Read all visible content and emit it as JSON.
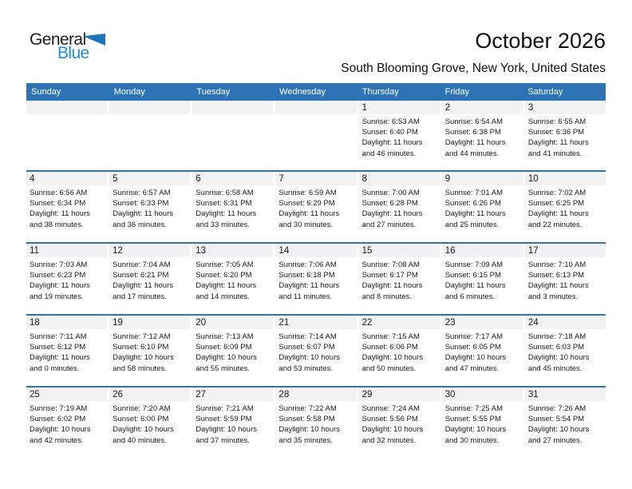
{
  "logo": {
    "part1": "General",
    "part2": "Blue"
  },
  "header": {
    "title": "October 2026",
    "subtitle": "South Blooming Grove, New York, United States"
  },
  "weekdays": [
    "Sunday",
    "Monday",
    "Tuesday",
    "Wednesday",
    "Thursday",
    "Friday",
    "Saturday"
  ],
  "colors": {
    "header_blue": "#2e74b5",
    "band_gray": "#f2f2f2",
    "logo_blue": "#1e8fd8",
    "triangle_blue": "#1d76bc"
  },
  "weeks": [
    [
      null,
      null,
      null,
      null,
      {
        "day": "1",
        "sunrise": "Sunrise: 6:53 AM",
        "sunset": "Sunset: 6:40 PM",
        "daylight_line1": "Daylight: 11 hours",
        "daylight_line2": "and 46 minutes."
      },
      {
        "day": "2",
        "sunrise": "Sunrise: 6:54 AM",
        "sunset": "Sunset: 6:38 PM",
        "daylight_line1": "Daylight: 11 hours",
        "daylight_line2": "and 44 minutes."
      },
      {
        "day": "3",
        "sunrise": "Sunrise: 6:55 AM",
        "sunset": "Sunset: 6:36 PM",
        "daylight_line1": "Daylight: 11 hours",
        "daylight_line2": "and 41 minutes."
      }
    ],
    [
      {
        "day": "4",
        "sunrise": "Sunrise: 6:56 AM",
        "sunset": "Sunset: 6:34 PM",
        "daylight_line1": "Daylight: 11 hours",
        "daylight_line2": "and 38 minutes."
      },
      {
        "day": "5",
        "sunrise": "Sunrise: 6:57 AM",
        "sunset": "Sunset: 6:33 PM",
        "daylight_line1": "Daylight: 11 hours",
        "daylight_line2": "and 36 minutes."
      },
      {
        "day": "6",
        "sunrise": "Sunrise: 6:58 AM",
        "sunset": "Sunset: 6:31 PM",
        "daylight_line1": "Daylight: 11 hours",
        "daylight_line2": "and 33 minutes."
      },
      {
        "day": "7",
        "sunrise": "Sunrise: 6:59 AM",
        "sunset": "Sunset: 6:29 PM",
        "daylight_line1": "Daylight: 11 hours",
        "daylight_line2": "and 30 minutes."
      },
      {
        "day": "8",
        "sunrise": "Sunrise: 7:00 AM",
        "sunset": "Sunset: 6:28 PM",
        "daylight_line1": "Daylight: 11 hours",
        "daylight_line2": "and 27 minutes."
      },
      {
        "day": "9",
        "sunrise": "Sunrise: 7:01 AM",
        "sunset": "Sunset: 6:26 PM",
        "daylight_line1": "Daylight: 11 hours",
        "daylight_line2": "and 25 minutes."
      },
      {
        "day": "10",
        "sunrise": "Sunrise: 7:02 AM",
        "sunset": "Sunset: 6:25 PM",
        "daylight_line1": "Daylight: 11 hours",
        "daylight_line2": "and 22 minutes."
      }
    ],
    [
      {
        "day": "11",
        "sunrise": "Sunrise: 7:03 AM",
        "sunset": "Sunset: 6:23 PM",
        "daylight_line1": "Daylight: 11 hours",
        "daylight_line2": "and 19 minutes."
      },
      {
        "day": "12",
        "sunrise": "Sunrise: 7:04 AM",
        "sunset": "Sunset: 6:21 PM",
        "daylight_line1": "Daylight: 11 hours",
        "daylight_line2": "and 17 minutes."
      },
      {
        "day": "13",
        "sunrise": "Sunrise: 7:05 AM",
        "sunset": "Sunset: 6:20 PM",
        "daylight_line1": "Daylight: 11 hours",
        "daylight_line2": "and 14 minutes."
      },
      {
        "day": "14",
        "sunrise": "Sunrise: 7:06 AM",
        "sunset": "Sunset: 6:18 PM",
        "daylight_line1": "Daylight: 11 hours",
        "daylight_line2": "and 11 minutes."
      },
      {
        "day": "15",
        "sunrise": "Sunrise: 7:08 AM",
        "sunset": "Sunset: 6:17 PM",
        "daylight_line1": "Daylight: 11 hours",
        "daylight_line2": "and 8 minutes."
      },
      {
        "day": "16",
        "sunrise": "Sunrise: 7:09 AM",
        "sunset": "Sunset: 6:15 PM",
        "daylight_line1": "Daylight: 11 hours",
        "daylight_line2": "and 6 minutes."
      },
      {
        "day": "17",
        "sunrise": "Sunrise: 7:10 AM",
        "sunset": "Sunset: 6:13 PM",
        "daylight_line1": "Daylight: 11 hours",
        "daylight_line2": "and 3 minutes."
      }
    ],
    [
      {
        "day": "18",
        "sunrise": "Sunrise: 7:11 AM",
        "sunset": "Sunset: 6:12 PM",
        "daylight_line1": "Daylight: 11 hours",
        "daylight_line2": "and 0 minutes."
      },
      {
        "day": "19",
        "sunrise": "Sunrise: 7:12 AM",
        "sunset": "Sunset: 6:10 PM",
        "daylight_line1": "Daylight: 10 hours",
        "daylight_line2": "and 58 minutes."
      },
      {
        "day": "20",
        "sunrise": "Sunrise: 7:13 AM",
        "sunset": "Sunset: 6:09 PM",
        "daylight_line1": "Daylight: 10 hours",
        "daylight_line2": "and 55 minutes."
      },
      {
        "day": "21",
        "sunrise": "Sunrise: 7:14 AM",
        "sunset": "Sunset: 6:07 PM",
        "daylight_line1": "Daylight: 10 hours",
        "daylight_line2": "and 53 minutes."
      },
      {
        "day": "22",
        "sunrise": "Sunrise: 7:15 AM",
        "sunset": "Sunset: 6:06 PM",
        "daylight_line1": "Daylight: 10 hours",
        "daylight_line2": "and 50 minutes."
      },
      {
        "day": "23",
        "sunrise": "Sunrise: 7:17 AM",
        "sunset": "Sunset: 6:05 PM",
        "daylight_line1": "Daylight: 10 hours",
        "daylight_line2": "and 47 minutes."
      },
      {
        "day": "24",
        "sunrise": "Sunrise: 7:18 AM",
        "sunset": "Sunset: 6:03 PM",
        "daylight_line1": "Daylight: 10 hours",
        "daylight_line2": "and 45 minutes."
      }
    ],
    [
      {
        "day": "25",
        "sunrise": "Sunrise: 7:19 AM",
        "sunset": "Sunset: 6:02 PM",
        "daylight_line1": "Daylight: 10 hours",
        "daylight_line2": "and 42 minutes."
      },
      {
        "day": "26",
        "sunrise": "Sunrise: 7:20 AM",
        "sunset": "Sunset: 6:00 PM",
        "daylight_line1": "Daylight: 10 hours",
        "daylight_line2": "and 40 minutes."
      },
      {
        "day": "27",
        "sunrise": "Sunrise: 7:21 AM",
        "sunset": "Sunset: 5:59 PM",
        "daylight_line1": "Daylight: 10 hours",
        "daylight_line2": "and 37 minutes."
      },
      {
        "day": "28",
        "sunrise": "Sunrise: 7:22 AM",
        "sunset": "Sunset: 5:58 PM",
        "daylight_line1": "Daylight: 10 hours",
        "daylight_line2": "and 35 minutes."
      },
      {
        "day": "29",
        "sunrise": "Sunrise: 7:24 AM",
        "sunset": "Sunset: 5:56 PM",
        "daylight_line1": "Daylight: 10 hours",
        "daylight_line2": "and 32 minutes."
      },
      {
        "day": "30",
        "sunrise": "Sunrise: 7:25 AM",
        "sunset": "Sunset: 5:55 PM",
        "daylight_line1": "Daylight: 10 hours",
        "daylight_line2": "and 30 minutes."
      },
      {
        "day": "31",
        "sunrise": "Sunrise: 7:26 AM",
        "sunset": "Sunset: 5:54 PM",
        "daylight_line1": "Daylight: 10 hours",
        "daylight_line2": "and 27 minutes."
      }
    ]
  ]
}
